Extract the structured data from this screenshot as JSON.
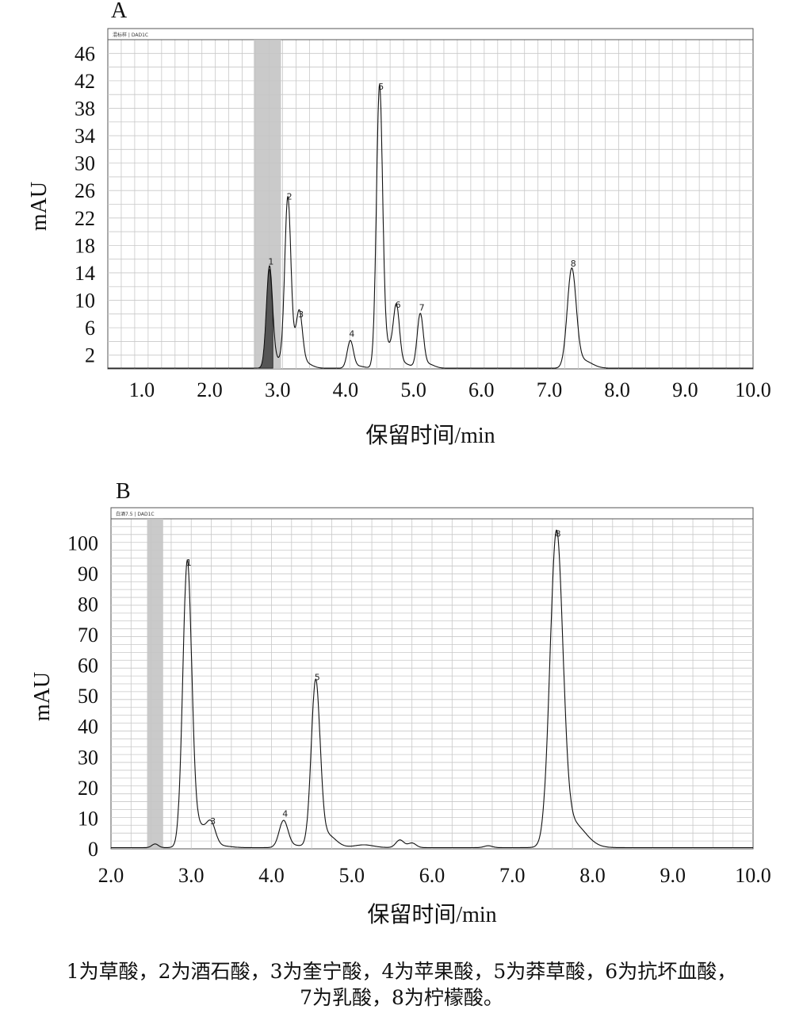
{
  "chart_data": [
    {
      "type": "line",
      "panel_label": "A",
      "header_text": "混标样 | DAD1C",
      "xlabel": "保留时间/min",
      "ylabel": "mAU",
      "xlim": [
        0.5,
        10.0
      ],
      "ylim": [
        0,
        48
      ],
      "x_ticks": [
        "1.0",
        "2.0",
        "3.0",
        "4.0",
        "5.0",
        "6.0",
        "7.0",
        "8.0",
        "9.0",
        "10.0"
      ],
      "y_ticks": [
        "2",
        "6",
        "10",
        "14",
        "18",
        "22",
        "26",
        "30",
        "34",
        "38",
        "42",
        "46"
      ],
      "grid": true,
      "shaded_region": [
        2.65,
        3.05
      ],
      "peaks": [
        {
          "label": "1",
          "x": 2.88,
          "y": 14.5,
          "filled": true
        },
        {
          "label": "2",
          "x": 3.15,
          "y": 24.0
        },
        {
          "label": "3",
          "x": 3.32,
          "y": 6.8
        },
        {
          "label": "4",
          "x": 4.07,
          "y": 4.0
        },
        {
          "label": "5",
          "x": 4.5,
          "y": 40.0
        },
        {
          "label": "6",
          "x": 4.75,
          "y": 8.2
        },
        {
          "label": "7",
          "x": 5.1,
          "y": 7.8
        },
        {
          "label": "8",
          "x": 7.33,
          "y": 14.2
        }
      ]
    },
    {
      "type": "line",
      "panel_label": "B",
      "header_text": "白酒7.5 | DAD1C",
      "xlabel": "保留时间/min",
      "ylabel": "mAU",
      "xlim": [
        2.0,
        10.0
      ],
      "ylim": [
        0,
        105
      ],
      "x_ticks": [
        "2.0",
        "3.0",
        "4.0",
        "5.0",
        "6.0",
        "7.0",
        "8.0",
        "9.0",
        "10.0"
      ],
      "y_ticks": [
        "0",
        "10",
        "20",
        "30",
        "40",
        "50",
        "60",
        "70",
        "80",
        "90",
        "100"
      ],
      "grid": true,
      "shaded_region": [
        2.45,
        2.65
      ],
      "peaks": [
        {
          "label": "1",
          "x": 2.95,
          "y": 91.0
        },
        {
          "label": "3",
          "x": 3.25,
          "y": 6.5
        },
        {
          "label": "4",
          "x": 4.15,
          "y": 9.0
        },
        {
          "label": "5",
          "x": 4.55,
          "y": 53.5
        },
        {
          "label": "8",
          "x": 7.55,
          "y": 100.5
        }
      ]
    }
  ],
  "caption": {
    "line1": "1为草酸，2为酒石酸，3为奎宁酸，4为苹果酸，5为莽草酸，6为抗坏血酸，",
    "line2": "7为乳酸，8为柠檬酸。"
  },
  "colors": {
    "trace": "#111111",
    "grid": "#c8c8c8",
    "shade": "#c4c4c4",
    "fill": "#555555"
  }
}
